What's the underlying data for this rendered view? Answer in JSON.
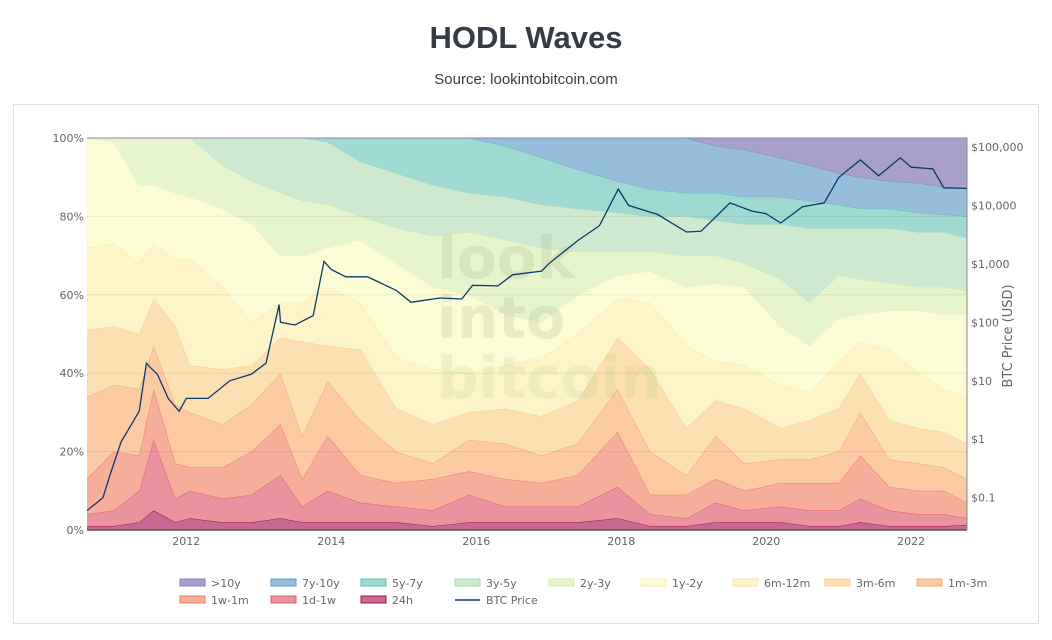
{
  "header": {
    "title": "HODL Waves",
    "subtitle": "Source: lookintobitcoin.com"
  },
  "watermark": [
    "look",
    "into",
    "bitcoin"
  ],
  "chart_data": {
    "type": "area",
    "stacked": true,
    "normalized_percent": true,
    "title": "HODL Waves",
    "y_left": {
      "ylim": [
        0,
        100
      ],
      "ticks": [
        "0%",
        "20%",
        "40%",
        "60%",
        "80%",
        "100%"
      ],
      "grid": true
    },
    "y_right": {
      "label": "BTC Price (USD)",
      "scale": "log",
      "ticks": [
        "$0.1",
        "$1",
        "$10",
        "$100",
        "$1,000",
        "$10,000",
        "$100,000"
      ],
      "tick_values": [
        0.1,
        1,
        10,
        100,
        1000,
        10000,
        100000
      ]
    },
    "x": {
      "ticks": [
        "2012",
        "2014",
        "2016",
        "2018",
        "2020",
        "2022"
      ],
      "xlim": [
        2010.63,
        2022.77
      ]
    },
    "legend_placement": "bottom",
    "dates": [
      2010.63,
      2011.0,
      2011.35,
      2011.55,
      2011.85,
      2012.05,
      2012.5,
      2012.9,
      2013.3,
      2013.6,
      2013.95,
      2014.4,
      2014.9,
      2015.4,
      2015.9,
      2016.4,
      2016.9,
      2017.4,
      2017.95,
      2018.4,
      2018.9,
      2019.3,
      2019.7,
      2020.2,
      2020.6,
      2021.0,
      2021.3,
      2021.7,
      2022.1,
      2022.45,
      2022.77
    ],
    "series": [
      {
        "name": ">10y",
        "color": "#a99fcb",
        "line": "#8c80bb",
        "values": [
          0,
          0,
          0,
          0,
          0,
          0,
          0,
          0,
          0,
          0,
          0,
          0,
          0,
          0,
          0,
          0,
          0,
          0,
          0,
          0,
          0,
          2,
          3,
          5,
          7,
          9,
          10,
          11,
          11.5,
          12.5,
          13
        ]
      },
      {
        "name": "7y-10y",
        "color": "#96bddc",
        "line": "#5f9acb",
        "values": [
          0,
          0,
          0,
          0,
          0,
          0,
          0,
          0,
          0,
          0,
          0,
          0,
          0,
          0,
          0,
          2,
          5,
          8,
          11,
          13,
          14,
          12,
          12,
          10,
          9,
          8,
          8,
          7,
          7.5,
          7,
          7
        ]
      },
      {
        "name": "5y-7y",
        "color": "#9fdad2",
        "line": "#5ec2b4",
        "values": [
          0,
          0,
          0,
          0,
          0,
          0,
          0,
          0,
          0,
          0,
          1,
          6,
          9,
          12,
          14,
          13,
          12,
          10,
          8,
          7,
          6,
          7,
          7,
          7,
          7,
          6,
          5,
          5,
          5,
          4.5,
          5.5
        ]
      },
      {
        "name": "3y-5y",
        "color": "#cdead0",
        "line": "#a9dab0",
        "values": [
          0,
          0,
          0,
          0,
          0,
          0,
          7,
          11,
          14,
          16,
          16,
          14,
          14,
          13,
          10,
          11,
          11,
          11,
          10,
          9,
          10,
          9,
          10,
          14,
          19,
          12,
          13,
          14,
          14,
          14,
          13.5
        ]
      },
      {
        "name": "2y-3y",
        "color": "#e7f5cc",
        "line": "#d4ecb0",
        "values": [
          0,
          1,
          12,
          12,
          14,
          15,
          11,
          11,
          16,
          14,
          11,
          6,
          9,
          13,
          16,
          19,
          19,
          11,
          6,
          5,
          8,
          7,
          6,
          12,
          11,
          11,
          9,
          7,
          6,
          7,
          6
        ]
      },
      {
        "name": "1y-2y",
        "color": "#fbfbd4",
        "line": "#f2f2b0",
        "values": [
          28,
          26,
          20,
          15,
          17,
          16,
          20,
          25,
          12,
          12,
          10,
          16,
          24,
          21,
          20,
          13,
          9,
          10,
          6,
          8,
          15,
          20,
          20,
          15,
          12,
          11,
          7,
          10,
          16,
          19,
          21
        ]
      },
      {
        "name": "6m-12m",
        "color": "#fdf4c8",
        "line": "#fbe6a0",
        "values": [
          21,
          21,
          18,
          14,
          17,
          27,
          21,
          11,
          9,
          10,
          15,
          12,
          13,
          14,
          10,
          11,
          15,
          17,
          10,
          17,
          21,
          10,
          11,
          11,
          7,
          12,
          8,
          18,
          14,
          11,
          12
        ]
      },
      {
        "name": "3m-6m",
        "color": "#fde0b2",
        "line": "#fccb88",
        "values": [
          17,
          15,
          14,
          12,
          20,
          12,
          14,
          10,
          9,
          24,
          9,
          18,
          11,
          10,
          7,
          9,
          10,
          11,
          13,
          21,
          12,
          9,
          14,
          8,
          10,
          11,
          10,
          10,
          9,
          9,
          9
        ]
      },
      {
        "name": "1m-3m",
        "color": "#fbc9a2",
        "line": "#f9a870",
        "values": [
          21,
          17,
          17,
          11,
          15,
          14,
          11,
          12,
          13,
          11,
          14,
          14,
          8,
          4,
          8,
          9,
          7,
          8,
          11,
          11,
          5,
          11,
          7,
          6,
          6,
          8,
          11,
          7,
          7,
          6,
          6
        ]
      },
      {
        "name": "1w-1m",
        "color": "#f6af9b",
        "line": "#f07f5c",
        "values": [
          9,
          15,
          9,
          13,
          9,
          6,
          8,
          11,
          13,
          7,
          14,
          7,
          6,
          8,
          6,
          7,
          6,
          8,
          14,
          5,
          6,
          6,
          5,
          6,
          7,
          7,
          11,
          6,
          6,
          6,
          4
        ]
      },
      {
        "name": "1d-1w",
        "color": "#e9939f",
        "line": "#dd6275",
        "values": [
          3,
          4,
          8,
          18,
          6,
          7,
          6,
          7,
          11,
          4,
          8,
          5,
          4,
          4,
          7,
          4,
          4,
          4,
          8,
          3,
          2,
          5,
          3,
          4,
          4,
          4,
          6,
          4,
          3,
          3,
          1.7
        ]
      },
      {
        "name": "24h",
        "color": "#c76a91",
        "line": "#a8124f",
        "values": [
          1,
          1,
          2,
          5,
          2,
          3,
          2,
          2,
          3,
          2,
          2,
          2,
          2,
          1,
          2,
          2,
          2,
          2,
          3,
          1,
          1,
          2,
          2,
          2,
          1,
          1,
          2,
          1,
          1,
          1,
          1.3
        ]
      }
    ],
    "btc_price": {
      "name": "BTC Price",
      "color": "#0b3a6b",
      "points": [
        [
          2010.63,
          0.06
        ],
        [
          2010.85,
          0.1
        ],
        [
          2010.95,
          0.25
        ],
        [
          2011.1,
          0.9
        ],
        [
          2011.35,
          3
        ],
        [
          2011.45,
          20
        ],
        [
          2011.5,
          17
        ],
        [
          2011.6,
          13
        ],
        [
          2011.75,
          5
        ],
        [
          2011.9,
          3
        ],
        [
          2012.0,
          5
        ],
        [
          2012.3,
          5
        ],
        [
          2012.6,
          10
        ],
        [
          2012.9,
          13
        ],
        [
          2013.1,
          20
        ],
        [
          2013.28,
          200
        ],
        [
          2013.3,
          100
        ],
        [
          2013.5,
          90
        ],
        [
          2013.75,
          130
        ],
        [
          2013.9,
          1100
        ],
        [
          2014.0,
          800
        ],
        [
          2014.2,
          600
        ],
        [
          2014.5,
          600
        ],
        [
          2014.9,
          350
        ],
        [
          2015.1,
          220
        ],
        [
          2015.5,
          260
        ],
        [
          2015.8,
          250
        ],
        [
          2015.95,
          430
        ],
        [
          2016.3,
          420
        ],
        [
          2016.5,
          650
        ],
        [
          2016.9,
          750
        ],
        [
          2017.0,
          1000
        ],
        [
          2017.4,
          2500
        ],
        [
          2017.7,
          4500
        ],
        [
          2017.96,
          19000
        ],
        [
          2018.1,
          10000
        ],
        [
          2018.5,
          7000
        ],
        [
          2018.9,
          3500
        ],
        [
          2019.1,
          3600
        ],
        [
          2019.5,
          11000
        ],
        [
          2019.8,
          8000
        ],
        [
          2020.0,
          7200
        ],
        [
          2020.2,
          5000
        ],
        [
          2020.5,
          9500
        ],
        [
          2020.8,
          11000
        ],
        [
          2021.0,
          30000
        ],
        [
          2021.3,
          60000
        ],
        [
          2021.55,
          32000
        ],
        [
          2021.85,
          65000
        ],
        [
          2022.0,
          45000
        ],
        [
          2022.3,
          42000
        ],
        [
          2022.45,
          20000
        ],
        [
          2022.77,
          19500
        ]
      ]
    }
  }
}
